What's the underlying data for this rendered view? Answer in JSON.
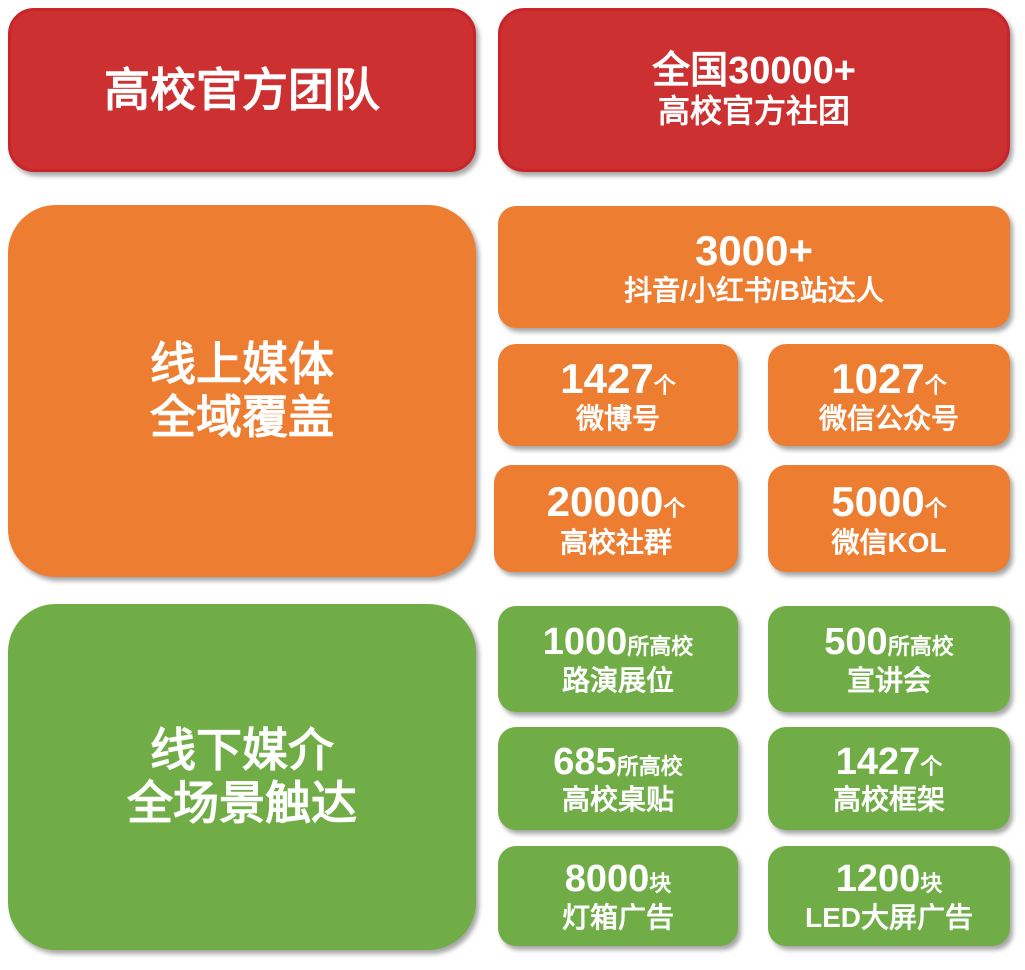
{
  "colors": {
    "red": "#cc3030",
    "orange": "#ed7d31",
    "green": "#70ad47"
  },
  "team": {
    "title": "高校官方团队",
    "stat_line1": "全国30000+",
    "stat_line2": "高校官方社团"
  },
  "online": {
    "title_line1": "线上媒体",
    "title_line2": "全域覆盖",
    "kol": {
      "value": "3000+",
      "label": "抖音/小红书/B站达人"
    },
    "items": [
      {
        "value": "1427",
        "unit": "个",
        "label": "微博号"
      },
      {
        "value": "1027",
        "unit": "个",
        "label": "微信公众号"
      },
      {
        "value": "20000",
        "unit": "个",
        "label": "高校社群"
      },
      {
        "value": "5000",
        "unit": "个",
        "label": "微信KOL"
      }
    ]
  },
  "offline": {
    "title_line1": "线下媒介",
    "title_line2": "全场景触达",
    "items": [
      {
        "value": "1000",
        "unit": "所高校",
        "label": "路演展位"
      },
      {
        "value": "500",
        "unit": "所高校",
        "label": "宣讲会"
      },
      {
        "value": "685",
        "unit": "所高校",
        "label": "高校桌贴"
      },
      {
        "value": "1427",
        "unit": "个",
        "label": "高校框架"
      },
      {
        "value": "8000",
        "unit": "块",
        "label": "灯箱广告"
      },
      {
        "value": "1200",
        "unit": "块",
        "label": "LED大屏广告"
      }
    ]
  }
}
